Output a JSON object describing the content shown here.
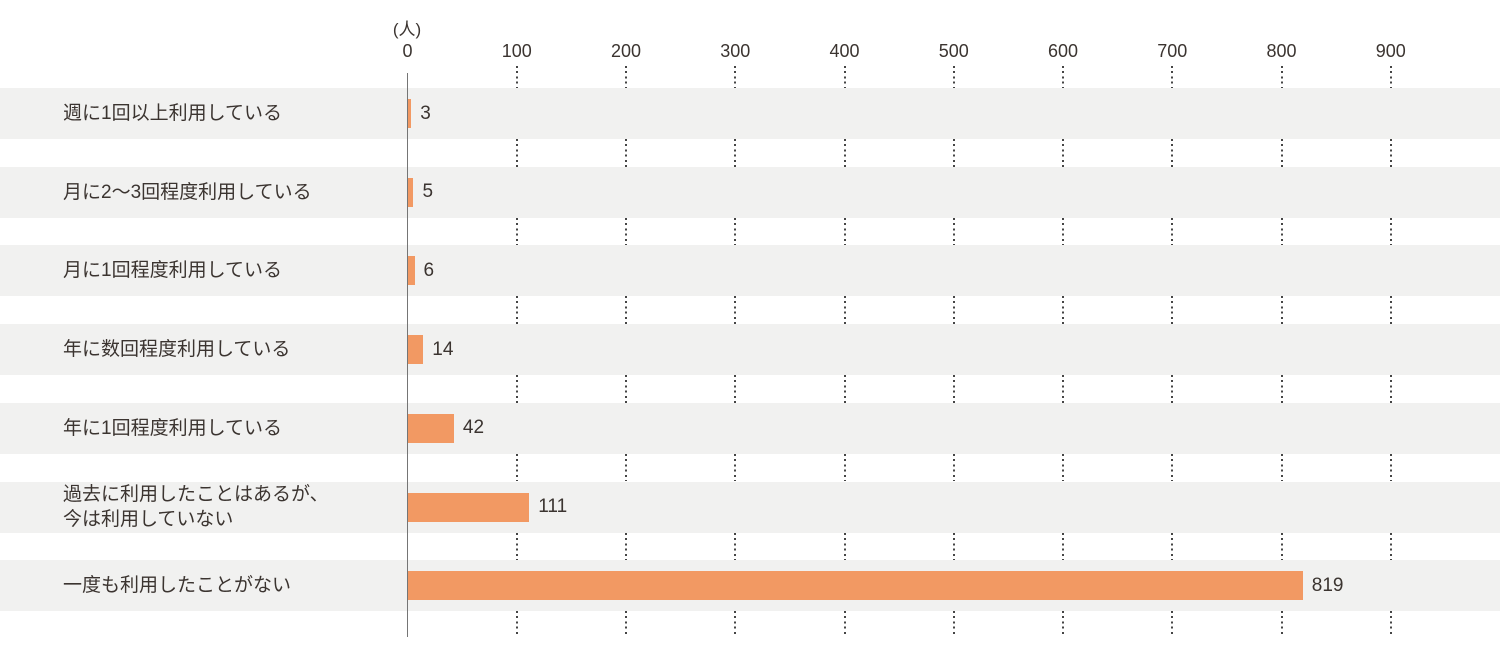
{
  "chart_data": {
    "type": "bar",
    "orientation": "horizontal",
    "title": "",
    "unit_label": "(人)",
    "x_ticks": [
      0,
      100,
      200,
      300,
      400,
      500,
      600,
      700,
      800,
      900
    ],
    "xlim": [
      0,
      1000
    ],
    "grid": "dotted-vertical-between-rows",
    "legend": "none",
    "categories": [
      "週に1回以上利用している",
      "月に2〜3回程度利用している",
      "月に1回程度利用している",
      "年に数回程度利用している",
      "年に1回程度利用している",
      "過去に利用したことはあるが、今は利用していない",
      "一度も利用したことがない"
    ],
    "values": [
      3,
      5,
      6,
      14,
      42,
      111,
      819
    ],
    "rows": [
      {
        "lines": [
          "週に1回以上利用している"
        ],
        "value": 3
      },
      {
        "lines": [
          "月に2〜3回程度利用している"
        ],
        "value": 5
      },
      {
        "lines": [
          "月に1回程度利用している"
        ],
        "value": 6
      },
      {
        "lines": [
          "年に数回程度利用している"
        ],
        "value": 14
      },
      {
        "lines": [
          "年に1回程度利用している"
        ],
        "value": 42
      },
      {
        "lines": [
          "過去に利用したことはあるが、",
          "今は利用していない"
        ],
        "value": 111
      },
      {
        "lines": [
          "一度も利用したことがない"
        ],
        "value": 819
      }
    ],
    "colors": {
      "bar": "#F29963",
      "row_band": "#F1F1F0",
      "axis_line": "#757575",
      "grid_dot": "#454545",
      "text": "#3B3430"
    }
  }
}
